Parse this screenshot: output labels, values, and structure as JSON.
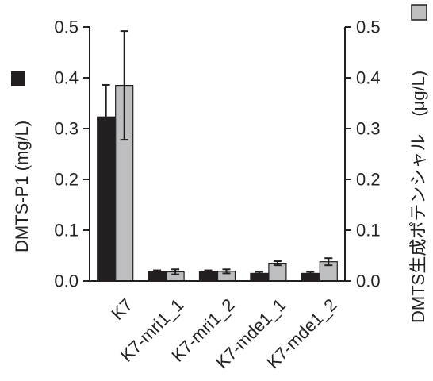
{
  "chart_data": {
    "type": "bar",
    "categories": [
      "K7",
      "K7-mri1_1",
      "K7-mri1_2",
      "K7-mde1_1",
      "K7-mde1_2"
    ],
    "series": [
      {
        "axis": "left",
        "color": "#231f20",
        "values": [
          0.323,
          0.018,
          0.018,
          0.015,
          0.015
        ],
        "errors": [
          0.063,
          0.003,
          0.003,
          0.003,
          0.003
        ]
      },
      {
        "axis": "right",
        "color": "#bcbec0",
        "values": [
          0.385,
          0.018,
          0.019,
          0.035,
          0.038
        ],
        "errors": [
          0.107,
          0.005,
          0.004,
          0.004,
          0.007
        ]
      }
    ],
    "ylabel": "DMTS-P1 (mg/L)",
    "y2label": "DMTS生成ポテンシャル　(μg/L)",
    "ylim": [
      0,
      0.5
    ],
    "y2lim": [
      0,
      0.5
    ],
    "yticks": [
      "0.0",
      "0.1",
      "0.2",
      "0.3",
      "0.4",
      "0.5"
    ],
    "y2ticks": [
      "0.0",
      "0.1",
      "0.2",
      "0.3",
      "0.4",
      "0.5"
    ],
    "grid": false,
    "legend": "swatches beside axis labels"
  }
}
